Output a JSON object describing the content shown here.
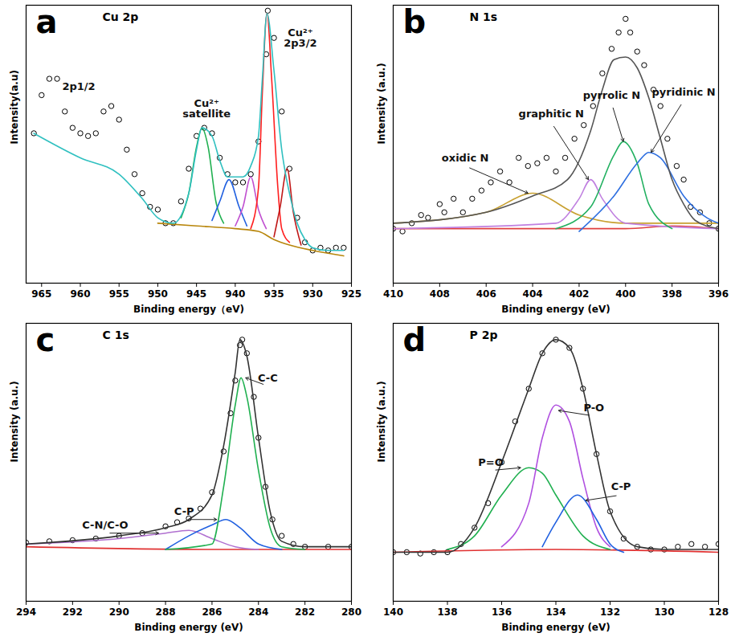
{
  "chart_data": [
    {
      "type": "line",
      "panel": "a",
      "title": "Cu 2p",
      "x_label": "Binding energy（eV)",
      "y_label": "Intensity(a.u)",
      "xlim": [
        967,
        925
      ],
      "xticks": [
        965,
        960,
        955,
        950,
        945,
        940,
        935,
        930,
        925
      ],
      "ylim": [
        0,
        102
      ],
      "tick_labels": "x",
      "grid": false,
      "series": [
        {
          "type": "scatter",
          "marker": "circle",
          "color": "#000000",
          "x": [
            966,
            965,
            964,
            963,
            962,
            961,
            960,
            959,
            958,
            957,
            956,
            955,
            954,
            953,
            952,
            951,
            950,
            949,
            948,
            947,
            946,
            945,
            944,
            943,
            942,
            941,
            940,
            939,
            938,
            937,
            936,
            935.8,
            935,
            934,
            933,
            932,
            931,
            930,
            929,
            928,
            927,
            926
          ],
          "values": [
            55,
            69,
            75,
            75,
            63,
            57,
            55,
            54,
            55,
            63,
            65,
            60,
            49,
            40,
            33,
            28,
            27,
            22,
            22,
            30,
            42,
            54,
            57,
            55,
            46,
            40,
            37,
            37,
            40,
            52,
            84,
            100,
            90,
            63,
            42,
            24,
            15,
            12,
            13,
            12,
            13,
            13
          ]
        },
        {
          "type": "line",
          "color": "#b8860b",
          "x": [
            950,
            945,
            940,
            937,
            935,
            933,
            930,
            926
          ],
          "values": [
            22,
            21,
            20,
            19,
            16,
            14,
            12,
            10
          ]
        },
        {
          "type": "line",
          "color": "#20b050",
          "x": [
            947,
            946,
            945,
            944.3,
            943.5,
            942.5,
            941.5
          ],
          "values": [
            24,
            33,
            50,
            57,
            50,
            30,
            22
          ]
        },
        {
          "type": "line",
          "color": "#2060e0",
          "x": [
            943,
            942,
            940.8,
            939.5,
            938.5
          ],
          "values": [
            23,
            30,
            38,
            28,
            21
          ]
        },
        {
          "type": "line",
          "color": "#c050d0",
          "x": [
            940,
            939,
            938,
            937,
            936
          ],
          "values": [
            21,
            28,
            39,
            27,
            20
          ]
        },
        {
          "type": "line",
          "color": "#ff2020",
          "x": [
            938,
            937,
            936.5,
            935.9,
            935.3,
            934.5,
            934,
            933
          ],
          "values": [
            20,
            35,
            70,
            99,
            75,
            35,
            20,
            15
          ]
        },
        {
          "type": "line",
          "color": "#c01818",
          "x": [
            935,
            934.2,
            933.3,
            932.5,
            931.5
          ],
          "values": [
            17,
            28,
            42,
            26,
            14
          ]
        },
        {
          "type": "line",
          "color": "#30c0c0",
          "x": [
            966,
            960,
            955,
            952,
            950,
            948,
            946,
            945,
            944.3,
            943,
            942,
            941,
            940,
            939,
            938,
            937,
            936.5,
            935.9,
            935,
            934,
            933.5,
            933,
            932,
            931,
            930,
            928,
            926
          ],
          "values": [
            55,
            46,
            40,
            31,
            24,
            22,
            33,
            49,
            57,
            54,
            45,
            39,
            39,
            39,
            43,
            54,
            75,
            99,
            78,
            49,
            40,
            33,
            22,
            16,
            13,
            12,
            12
          ]
        }
      ],
      "annotations": [
        {
          "text": "2p1/2",
          "x": 960.2,
          "y": 72
        },
        {
          "text": "Cu²⁺\nsatellite",
          "x": 943.7,
          "y": 64
        },
        {
          "text": "Cu²⁺\n2p3/2",
          "x": 931.6,
          "y": 90
        }
      ]
    },
    {
      "type": "line",
      "panel": "b",
      "title": "N 1s",
      "x_label": "Binding energy (eV)",
      "y_label": "Intensity (a.u.)",
      "xlim": [
        410,
        396
      ],
      "xticks": [
        410,
        408,
        406,
        404,
        402,
        400,
        398,
        396
      ],
      "ylim": [
        0,
        102
      ],
      "tick_labels": "x",
      "grid": false,
      "series": [
        {
          "type": "scatter",
          "marker": "circle",
          "color": "#000000",
          "x": [
            410,
            409.6,
            409.2,
            408.8,
            408.5,
            408,
            407.8,
            407.4,
            407,
            406.6,
            406.2,
            405.8,
            405.4,
            405,
            404.6,
            404.2,
            403.8,
            403.4,
            403,
            402.6,
            402.2,
            401.8,
            401.4,
            401,
            400.6,
            400.3,
            400,
            399.8,
            399.5,
            399.2,
            398.8,
            398.5,
            398.2,
            397.8,
            397.5,
            397.2,
            396.8,
            396.4,
            396
          ],
          "values": [
            20,
            19,
            22,
            25,
            24,
            29,
            26,
            31,
            26,
            31,
            34,
            37,
            41,
            37,
            46,
            43,
            44,
            46,
            41,
            46,
            53,
            58,
            65,
            77,
            86,
            92,
            97,
            92,
            85,
            80,
            71,
            65,
            53,
            43,
            38,
            28,
            26,
            22,
            20
          ]
        },
        {
          "type": "line",
          "color": "#e04040",
          "x": [
            410,
            404,
            400,
            398,
            396
          ],
          "values": [
            20,
            20,
            20,
            21,
            20
          ]
        },
        {
          "type": "line",
          "color": "#c8a030",
          "x": [
            410,
            406,
            404,
            402,
            400,
            396
          ],
          "values": [
            22,
            26,
            33,
            25,
            22,
            22
          ]
        },
        {
          "type": "line",
          "color": "#c080e0",
          "x": [
            410,
            403,
            402,
            401.5,
            401,
            400,
            396
          ],
          "values": [
            20,
            22,
            31,
            38,
            31,
            22,
            20
          ]
        },
        {
          "type": "line",
          "color": "#22b060",
          "x": [
            403,
            401.5,
            400.5,
            400.1,
            399.5,
            399,
            398
          ],
          "values": [
            20,
            28,
            47,
            52,
            44,
            29,
            20
          ]
        },
        {
          "type": "line",
          "color": "#2e6fe0",
          "x": [
            402,
            400.5,
            399.5,
            399,
            398.5,
            397.5,
            396.5,
            396
          ],
          "values": [
            19,
            32,
            44,
            48,
            46,
            32,
            24,
            22
          ]
        },
        {
          "type": "line",
          "color": "#555555",
          "x": [
            410,
            406,
            404,
            402.5,
            401.5,
            401,
            400.5,
            400,
            399.5,
            399,
            398.5,
            398,
            397.5,
            397,
            396
          ],
          "values": [
            22,
            26,
            32,
            38,
            56,
            71,
            82,
            83,
            79,
            68,
            53,
            38,
            29,
            23,
            20
          ]
        }
      ],
      "annotations": [
        {
          "text": "oxidic N",
          "x": 406.9,
          "y": 46,
          "arrow_x": 404.2,
          "arrow_y": 33
        },
        {
          "text": "graphitic N",
          "x": 403.2,
          "y": 62,
          "arrow_x": 401.6,
          "arrow_y": 38
        },
        {
          "text": "pyrrolic N",
          "x": 400.6,
          "y": 69,
          "arrow_x": 400.1,
          "arrow_y": 52
        },
        {
          "text": "pyridinic N",
          "x": 397.5,
          "y": 70,
          "arrow_x": 398.9,
          "arrow_y": 48
        }
      ]
    },
    {
      "type": "line",
      "panel": "c",
      "title": "C 1s",
      "x_label": "Binding energy (eV)",
      "y_label": "Intensity (a.u.)",
      "xlim": [
        294,
        280
      ],
      "xticks": [
        294,
        292,
        290,
        288,
        286,
        284,
        282,
        280
      ],
      "ylim": [
        0,
        102
      ],
      "tick_labels": "x",
      "grid": false,
      "series": [
        {
          "type": "scatter",
          "marker": "circle",
          "color": "#000000",
          "x": [
            294,
            293,
            292,
            291,
            290,
            289,
            288,
            287.5,
            287,
            286.5,
            286,
            285.5,
            285.2,
            285,
            284.8,
            284.7,
            284.5,
            284.2,
            284,
            283.7,
            283.4,
            283,
            282.5,
            282,
            281,
            280
          ],
          "values": [
            21.5,
            22,
            22.4,
            23,
            24,
            25,
            27.5,
            29,
            30.4,
            34,
            40,
            55,
            69,
            81,
            94,
            96,
            91,
            75,
            60,
            42,
            30,
            24,
            21,
            20,
            20,
            20
          ]
        },
        {
          "type": "line",
          "color": "#e03030",
          "x": [
            294,
            286,
            280
          ],
          "values": [
            20,
            19,
            19
          ]
        },
        {
          "type": "line",
          "color": "#b070d0",
          "x": [
            294,
            290,
            288,
            287,
            286,
            285,
            284
          ],
          "values": [
            21,
            23,
            25,
            26,
            23,
            20,
            19
          ]
        },
        {
          "type": "line",
          "color": "#2060e0",
          "x": [
            288,
            287,
            286,
            285.4,
            284.8,
            284,
            283
          ],
          "values": [
            19,
            24,
            28,
            30,
            27,
            21,
            19
          ]
        },
        {
          "type": "line",
          "color": "#20b050",
          "x": [
            288,
            286,
            285.5,
            285,
            284.75,
            284.5,
            284,
            283.5,
            283,
            282
          ],
          "values": [
            19,
            21,
            42,
            72,
            82,
            75,
            48,
            27,
            20,
            19
          ]
        },
        {
          "type": "line",
          "color": "#333333",
          "x": [
            294,
            290,
            288,
            287,
            286,
            285.5,
            285,
            284.8,
            284.5,
            284,
            283.5,
            283,
            282,
            280
          ],
          "values": [
            21,
            24,
            27,
            30,
            39,
            57,
            84,
            96,
            90,
            60,
            33,
            22,
            20,
            20
          ]
        }
      ],
      "annotations": [
        {
          "text": "C-C",
          "x": 283.6,
          "y": 82,
          "arrow_x": 284.55,
          "arrow_y": 82
        },
        {
          "text": "C-P",
          "x": 287.2,
          "y": 33,
          "arrow_x": 285.8,
          "arrow_y": 30
        },
        {
          "text": "C-N/C-O",
          "x": 290.6,
          "y": 28,
          "arrow_x": 288.3,
          "arrow_y": 25
        }
      ]
    },
    {
      "type": "line",
      "panel": "d",
      "title": "P 2p",
      "x_label": "Binding energy (eV)",
      "y_label": "Intensity (a.u.)",
      "xlim": [
        140,
        128
      ],
      "xticks": [
        140,
        138,
        136,
        134,
        132,
        130,
        128
      ],
      "ylim": [
        0,
        102
      ],
      "tick_labels": "x",
      "grid": false,
      "series": [
        {
          "type": "scatter",
          "marker": "circle",
          "color": "#000000",
          "x": [
            140,
            139.5,
            139,
            138.5,
            138,
            137.5,
            137,
            136.5,
            136,
            135.5,
            135,
            134.5,
            134,
            133.5,
            133,
            132.5,
            132,
            131.5,
            131,
            130.5,
            130,
            129.5,
            129,
            128.5,
            128
          ],
          "values": [
            18,
            18,
            17.5,
            18,
            18,
            21,
            27,
            36,
            51,
            66,
            78,
            91,
            96,
            93,
            78,
            54,
            33,
            23,
            20,
            19,
            19,
            20,
            21,
            20,
            21
          ]
        },
        {
          "type": "line",
          "color": "#e03030",
          "x": [
            140,
            134,
            128
          ],
          "values": [
            18,
            19,
            18
          ]
        },
        {
          "type": "line",
          "color": "#20b050",
          "x": [
            138,
            137,
            136,
            135,
            134.5,
            134,
            133,
            132
          ],
          "values": [
            19,
            24,
            39,
            49,
            47,
            39,
            24,
            19
          ]
        },
        {
          "type": "line",
          "color": "#b050e0",
          "x": [
            136,
            135,
            134.5,
            134,
            133.5,
            133,
            132.5,
            132
          ],
          "values": [
            20,
            36,
            60,
            72,
            66,
            45,
            27,
            20
          ]
        },
        {
          "type": "line",
          "color": "#2060e0",
          "x": [
            134.5,
            134,
            133.2,
            132.5,
            132,
            131.5
          ],
          "values": [
            20,
            29,
            39,
            30,
            21,
            18
          ]
        },
        {
          "type": "line",
          "color": "#333333",
          "x": [
            140,
            138,
            137,
            136,
            135,
            134.5,
            134,
            133.5,
            133,
            132.5,
            132,
            131,
            130,
            128
          ],
          "values": [
            18,
            18,
            27,
            51,
            78,
            91,
            96,
            93,
            78,
            54,
            33,
            20,
            19,
            19
          ]
        }
      ],
      "annotations": [
        {
          "text": "P-O",
          "x": 132.6,
          "y": 71,
          "arrow_x": 133.9,
          "arrow_y": 70
        },
        {
          "text": "P=O",
          "x": 136.4,
          "y": 51,
          "arrow_x": 135.3,
          "arrow_y": 49
        },
        {
          "text": "C-P",
          "x": 131.6,
          "y": 42,
          "arrow_x": 132.9,
          "arrow_y": 37
        }
      ]
    }
  ]
}
